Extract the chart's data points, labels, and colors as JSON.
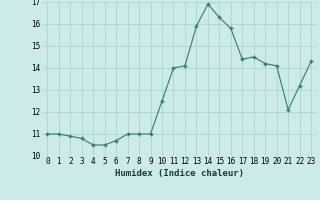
{
  "x": [
    0,
    1,
    2,
    3,
    4,
    5,
    6,
    7,
    8,
    9,
    10,
    11,
    12,
    13,
    14,
    15,
    16,
    17,
    18,
    19,
    20,
    21,
    22,
    23
  ],
  "y": [
    11.0,
    11.0,
    10.9,
    10.8,
    10.5,
    10.5,
    10.7,
    11.0,
    11.0,
    11.0,
    12.5,
    14.0,
    14.1,
    15.9,
    16.9,
    16.3,
    15.8,
    14.4,
    14.5,
    14.2,
    14.1,
    12.1,
    13.2,
    14.3
  ],
  "xlabel": "Humidex (Indice chaleur)",
  "ylabel": "",
  "xlim": [
    -0.5,
    23.5
  ],
  "ylim": [
    10,
    17
  ],
  "yticks": [
    10,
    11,
    12,
    13,
    14,
    15,
    16,
    17
  ],
  "xticks": [
    0,
    1,
    2,
    3,
    4,
    5,
    6,
    7,
    8,
    9,
    10,
    11,
    12,
    13,
    14,
    15,
    16,
    17,
    18,
    19,
    20,
    21,
    22,
    23
  ],
  "line_color": "#2d7d6e",
  "marker_color": "#2d7d6e",
  "bg_color": "#cceae7",
  "grid_color": "#aacfcc",
  "label_fontsize": 6.5,
  "tick_fontsize": 5.5
}
